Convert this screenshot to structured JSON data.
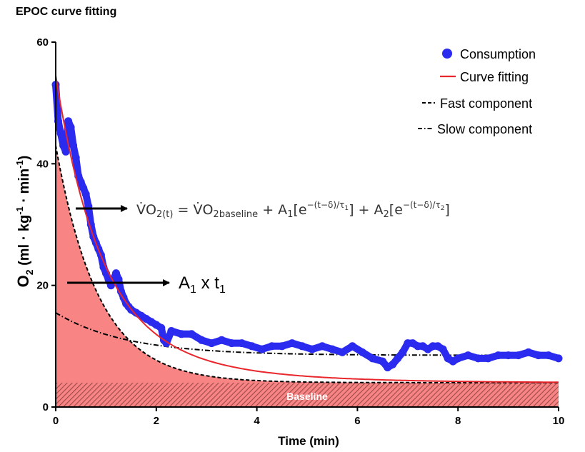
{
  "title": "EPOC curve fitting",
  "chart_data": {
    "type": "line",
    "title": "EPOC curve fitting",
    "xlabel": "Time (min)",
    "ylabel_main": "O",
    "ylabel_sub": "2",
    "ylabel_rest": " (ml · kg",
    "ylabel_sup1": "-1",
    "ylabel_mid": " · min",
    "ylabel_sup2": "-1",
    "ylabel_end": ")",
    "xlim": [
      0,
      10
    ],
    "ylim": [
      0,
      60
    ],
    "xticks": [
      0,
      2,
      4,
      6,
      8,
      10
    ],
    "yticks": [
      0,
      20,
      40,
      60
    ],
    "grid": false,
    "legend_position": "top-right",
    "baseline_value": 4,
    "baseline_label": "Baseline",
    "series": [
      {
        "name": "Consumption",
        "style": "points",
        "color": "#2b2bf0",
        "x": [
          0.0,
          0.05,
          0.1,
          0.15,
          0.2,
          0.25,
          0.3,
          0.35,
          0.4,
          0.45,
          0.5,
          0.55,
          0.6,
          0.65,
          0.7,
          0.75,
          0.8,
          0.85,
          0.9,
          0.95,
          1.0,
          1.05,
          1.1,
          1.15,
          1.2,
          1.25,
          1.3,
          1.35,
          1.4,
          1.45,
          1.5,
          1.6,
          1.7,
          1.8,
          1.9,
          2.0,
          2.1,
          2.15,
          2.2,
          2.3,
          2.5,
          2.7,
          2.9,
          3.1,
          3.3,
          3.5,
          3.7,
          3.9,
          4.1,
          4.3,
          4.5,
          4.7,
          4.9,
          5.1,
          5.3,
          5.5,
          5.7,
          5.9,
          6.1,
          6.3,
          6.5,
          6.6,
          6.7,
          6.8,
          6.9,
          7.0,
          7.1,
          7.2,
          7.3,
          7.4,
          7.5,
          7.6,
          7.7,
          7.8,
          7.9,
          8.0,
          8.2,
          8.4,
          8.6,
          8.8,
          9.0,
          9.2,
          9.4,
          9.6,
          9.8,
          10.0
        ],
        "y": [
          53,
          47,
          45,
          43,
          42,
          47,
          46,
          43,
          41,
          38,
          37,
          36,
          35,
          33,
          30,
          28,
          27,
          26,
          25,
          23,
          22,
          21,
          20,
          21,
          22,
          21,
          19,
          18,
          17,
          16.5,
          16,
          15.5,
          15,
          14.5,
          14,
          13.5,
          13,
          11,
          10.5,
          12.5,
          12,
          12,
          11,
          10.5,
          11,
          10.5,
          10.5,
          10,
          9.5,
          10,
          10,
          10.5,
          10,
          9.5,
          10,
          9.5,
          9,
          10,
          9,
          8,
          7.5,
          6.5,
          7,
          8,
          9,
          10.5,
          10.5,
          10,
          10,
          9.5,
          10,
          10,
          9.5,
          8,
          7.5,
          8,
          8.5,
          8,
          8,
          8.5,
          8.5,
          8.5,
          9,
          8.5,
          8.5,
          8
        ]
      },
      {
        "name": "Curve fitting",
        "style": "line",
        "color": "#e8262b",
        "function": "biexp",
        "params": {
          "baseline": 4,
          "A1": 39,
          "tau1": 0.85,
          "A2": 11.5,
          "tau2": 2.0
        }
      },
      {
        "name": "Fast component",
        "style": "dashed",
        "color": "#000000",
        "function": "exp",
        "params": {
          "baseline": 4,
          "A": 39,
          "tau": 0.85
        }
      },
      {
        "name": "Slow component",
        "style": "dashdot",
        "color": "#000000",
        "function": "exp",
        "params": {
          "baseline": 8.5,
          "A": 7,
          "tau": 1.4
        }
      }
    ],
    "annotations": {
      "equation": "V̇O2(t) = V̇O2baseline + A1[e^−(t−δ)/τ1] + A2[e^−(t−δ)/τ2]",
      "eq_lhs": "V̇O",
      "eq_lhs_sub": "2(t)",
      "eq_eq": " = V̇O",
      "eq_base_sub": "2baseline",
      "eq_plus1": " + A",
      "eq_a1_sub": "1",
      "eq_br1": "[e",
      "eq_exp1": "−(t−δ)/τ",
      "eq_exp1_sub": "1",
      "eq_br1_close": "]",
      "eq_plus2": " + A",
      "eq_a2_sub": "2",
      "eq_br2": "[e",
      "eq_exp2": "−(t−δ)/τ",
      "eq_exp2_sub": "2",
      "eq_br2_close": "]",
      "area_label_a": "A",
      "area_label_a_sub": "1",
      "area_label_x": " x t",
      "area_label_t_sub": "1"
    },
    "colors": {
      "fill": "#f88484",
      "hatch": "#ffffff",
      "consumption": "#2b2bf0",
      "fit": "#e8262b"
    }
  }
}
